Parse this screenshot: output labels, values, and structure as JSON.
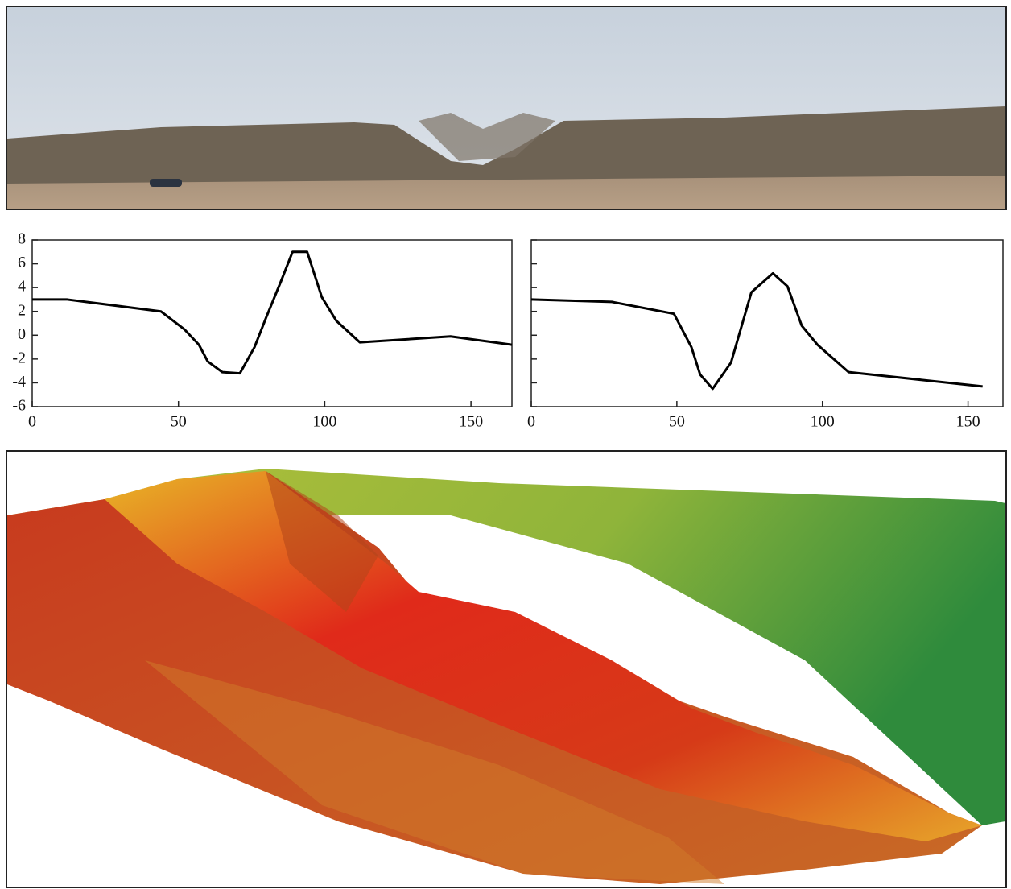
{
  "chart_data": [
    {
      "type": "line",
      "x": [
        0,
        12,
        44,
        52,
        57,
        60,
        65,
        71,
        76,
        80,
        85,
        89,
        94,
        99,
        104,
        112,
        143,
        164
      ],
      "series": [
        {
          "color": "#000000",
          "values": [
            3,
            3,
            2,
            0.5,
            -0.8,
            -2.2,
            -3.1,
            -3.2,
            -1,
            1.5,
            4.5,
            7,
            7,
            3.2,
            1.2,
            -0.6,
            -0.1,
            -0.8
          ]
        }
      ],
      "xlim": [
        0,
        164
      ],
      "ylim": [
        -6,
        8
      ],
      "xticks": [
        0,
        50,
        100,
        150
      ],
      "yticks": [
        -6,
        -4,
        -2,
        0,
        2,
        4,
        6,
        8
      ]
    },
    {
      "type": "line",
      "x": [
        0,
        27.7,
        49,
        55,
        58,
        62.3,
        68.6,
        75.6,
        83,
        88,
        92.9,
        98.3,
        109,
        155
      ],
      "series": [
        {
          "color": "#000000",
          "values": [
            3,
            2.8,
            1.8,
            -1,
            -3.3,
            -4.5,
            -2.3,
            3.6,
            5.2,
            4.1,
            0.8,
            -0.8,
            -3.1,
            -4.3
          ]
        }
      ],
      "xlim": [
        0,
        162
      ],
      "ylim": [
        -6,
        8
      ],
      "xticks": [
        0,
        50,
        100,
        150
      ],
      "yticks": [
        -6,
        -4,
        -2,
        0,
        2,
        4,
        6,
        8
      ]
    }
  ]
}
